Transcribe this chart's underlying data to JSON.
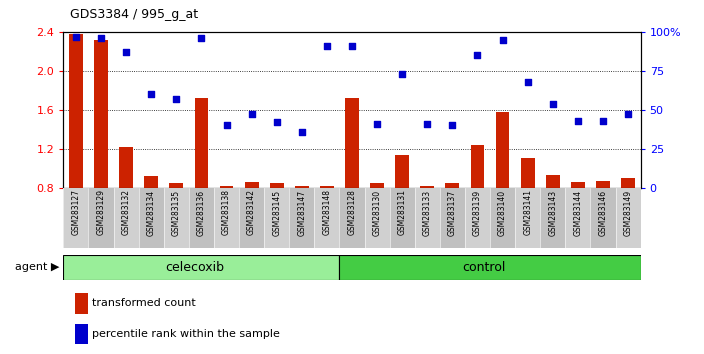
{
  "title": "GDS3384 / 995_g_at",
  "samples": [
    "GSM283127",
    "GSM283129",
    "GSM283132",
    "GSM283134",
    "GSM283135",
    "GSM283136",
    "GSM283138",
    "GSM283142",
    "GSM283145",
    "GSM283147",
    "GSM283148",
    "GSM283128",
    "GSM283130",
    "GSM283131",
    "GSM283133",
    "GSM283137",
    "GSM283139",
    "GSM283140",
    "GSM283141",
    "GSM283143",
    "GSM283144",
    "GSM283146",
    "GSM283149"
  ],
  "bar_values": [
    2.38,
    2.32,
    1.22,
    0.92,
    0.85,
    1.72,
    0.82,
    0.86,
    0.85,
    0.82,
    0.82,
    1.72,
    0.85,
    1.14,
    0.82,
    0.85,
    1.24,
    1.58,
    1.1,
    0.93,
    0.86,
    0.87,
    0.9
  ],
  "scatter_values": [
    97,
    96,
    87,
    60,
    57,
    96,
    40,
    47,
    42,
    36,
    91,
    91,
    41,
    73,
    41,
    40,
    85,
    95,
    68,
    54,
    43,
    43,
    47
  ],
  "celecoxib_count": 11,
  "control_count": 12,
  "ylim_left": [
    0.8,
    2.4
  ],
  "ylim_right": [
    0,
    100
  ],
  "yticks_left": [
    0.8,
    1.2,
    1.6,
    2.0,
    2.4
  ],
  "yticks_right": [
    0,
    25,
    50,
    75,
    100
  ],
  "ytick_labels_right": [
    "0",
    "25",
    "50",
    "75",
    "100%"
  ],
  "bar_color": "#cc2200",
  "scatter_color": "#0000cc",
  "celecoxib_color": "#99ee99",
  "control_color": "#44cc44",
  "plot_bg": "#ffffff",
  "legend1": "transformed count",
  "legend2": "percentile rank within the sample"
}
